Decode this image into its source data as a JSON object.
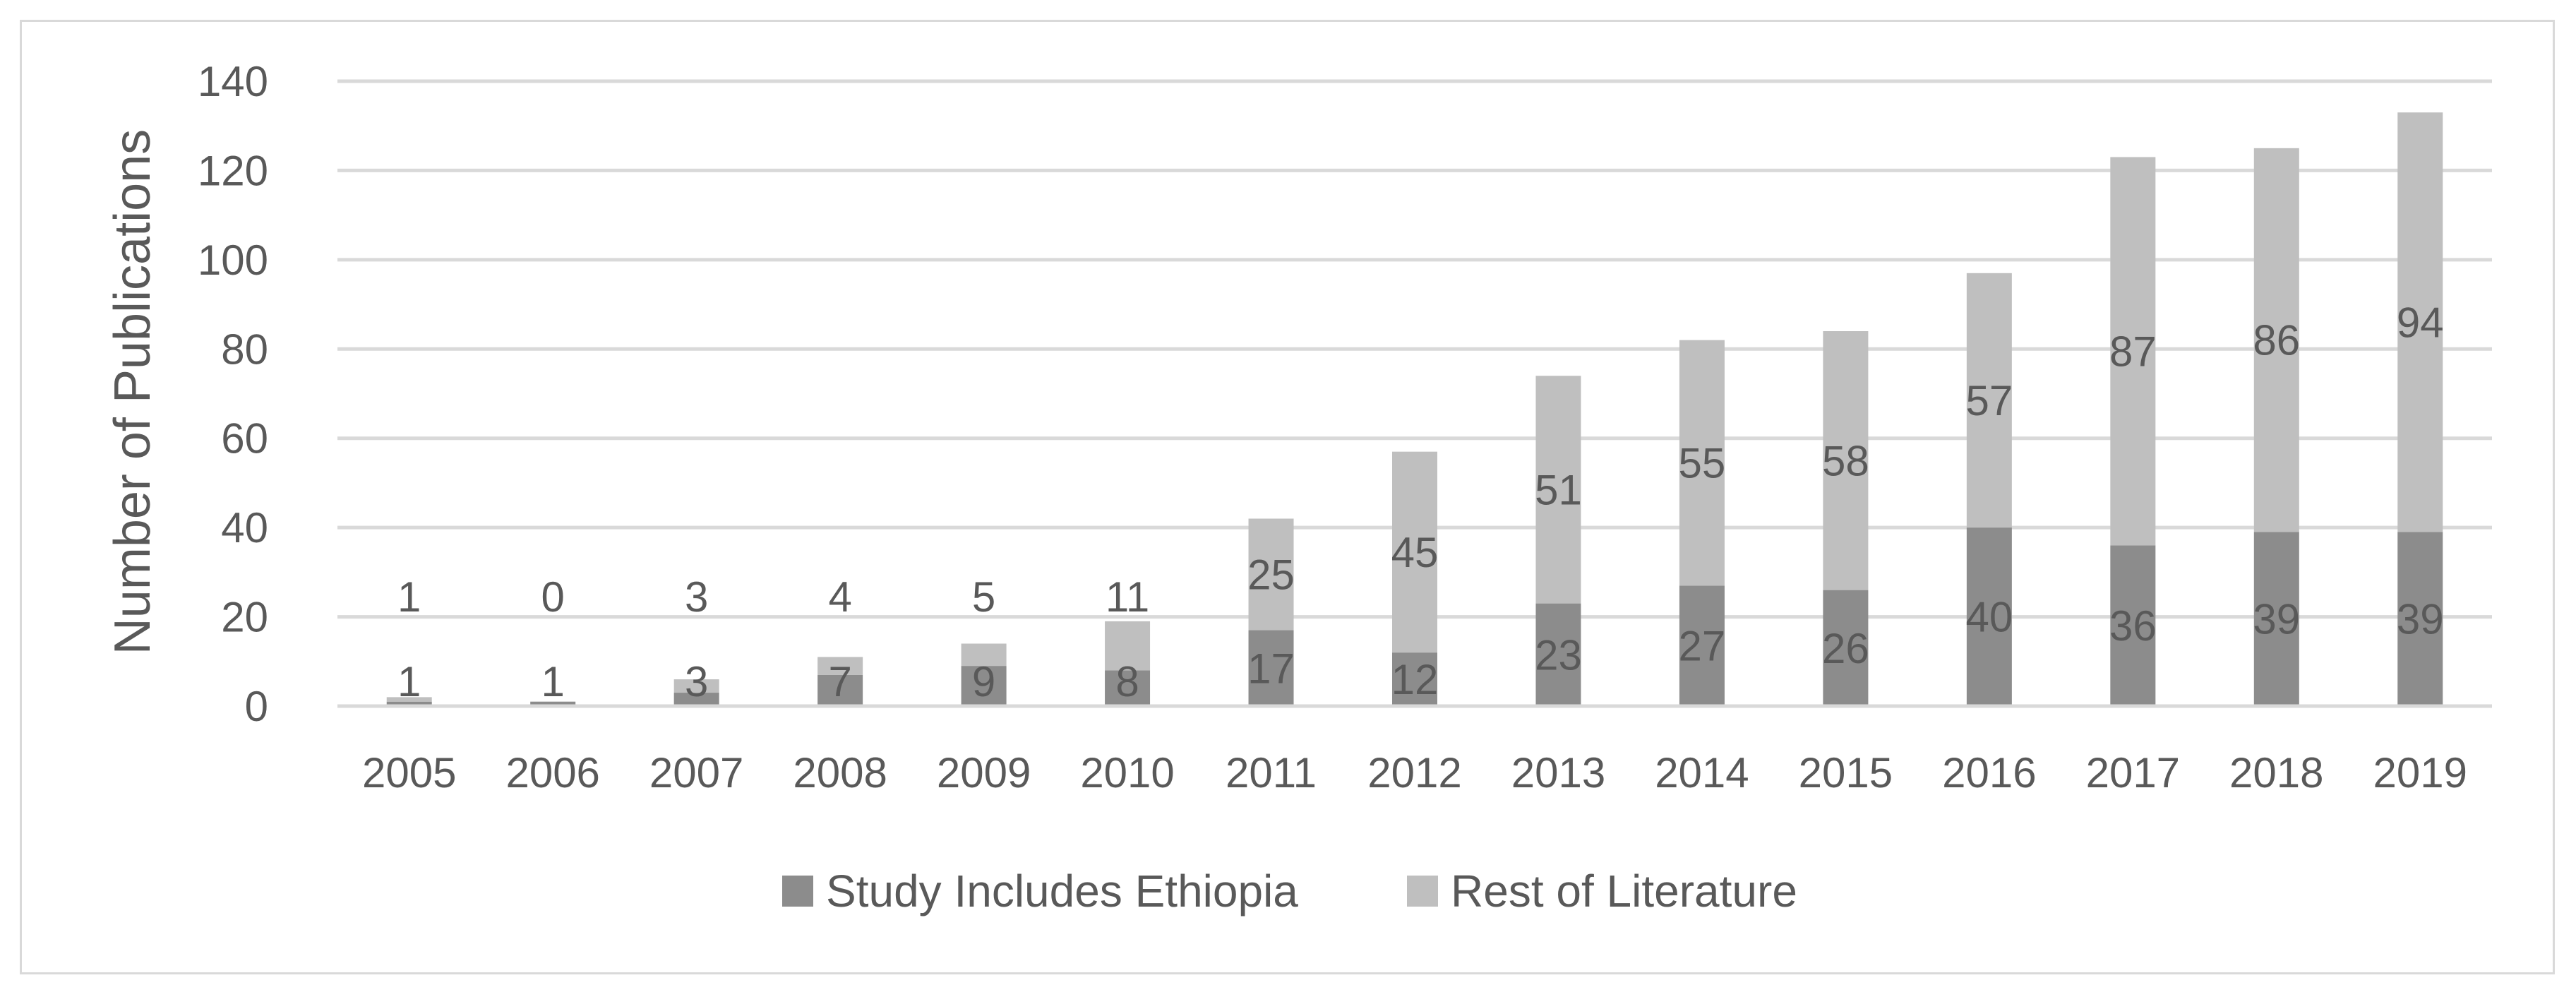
{
  "chart_data": {
    "type": "bar",
    "stacked": true,
    "categories": [
      "2005",
      "2006",
      "2007",
      "2008",
      "2009",
      "2010",
      "2011",
      "2012",
      "2013",
      "2014",
      "2015",
      "2016",
      "2017",
      "2018",
      "2019"
    ],
    "series": [
      {
        "name": "Study Includes Ethiopia",
        "values": [
          1,
          1,
          3,
          7,
          9,
          8,
          17,
          12,
          23,
          27,
          26,
          40,
          36,
          39,
          39
        ],
        "color": "#8c8c8c"
      },
      {
        "name": "Rest of Literature",
        "values": [
          1,
          0,
          3,
          4,
          5,
          11,
          25,
          45,
          51,
          55,
          58,
          57,
          87,
          86,
          94
        ],
        "color": "#bfbfbf"
      }
    ],
    "ylabel": "Number of Publications",
    "xlabel": "",
    "ylim": [
      0,
      140
    ],
    "yticks": [
      0,
      20,
      40,
      60,
      80,
      100,
      120,
      140
    ],
    "grid": true,
    "legend_position": "bottom"
  }
}
